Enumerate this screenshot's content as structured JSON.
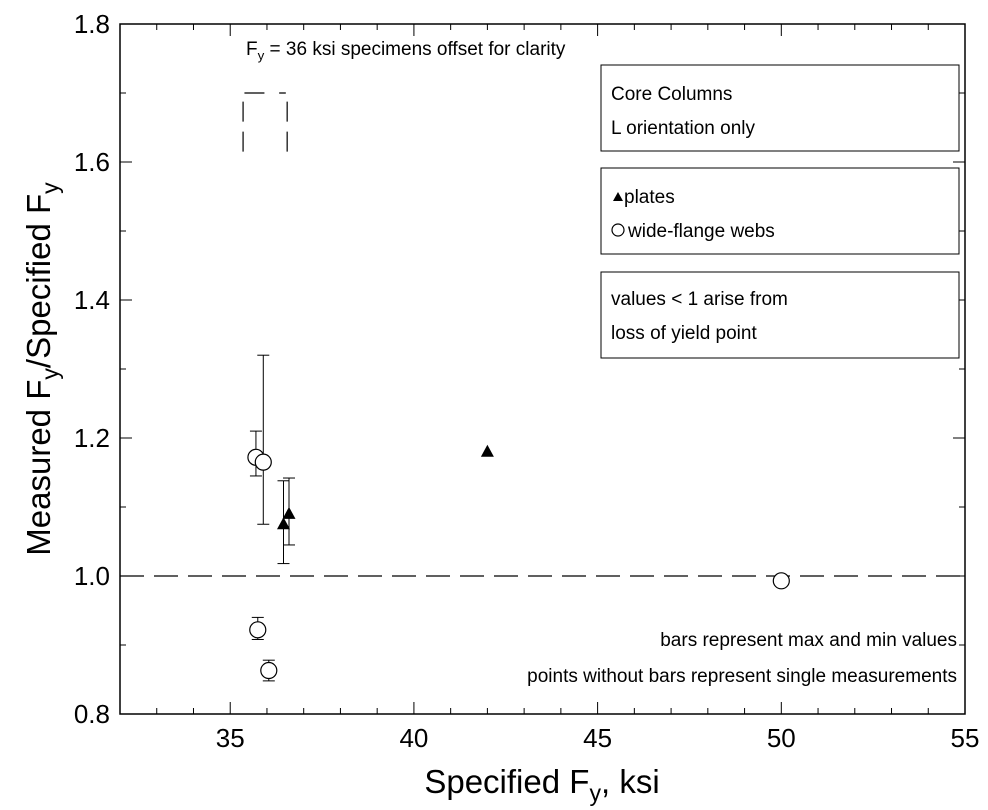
{
  "chart_data": {
    "type": "scatter",
    "title": "",
    "xlabel": {
      "main": "Specified F",
      "sub": "y",
      "tail": ", ksi"
    },
    "ylabel": {
      "a": "Measured F",
      "a_sub": "y",
      "b": "/Specified F",
      "b_sub": "y"
    },
    "xlim": [
      32,
      55
    ],
    "ylim": [
      0.8,
      1.8
    ],
    "x_ticks": [
      35,
      40,
      45,
      50,
      55
    ],
    "y_ticks": [
      0.8,
      1.0,
      1.2,
      1.4,
      1.6,
      1.8
    ],
    "x_tick_labels": [
      "35",
      "40",
      "45",
      "50",
      "55"
    ],
    "y_tick_labels": [
      "0.8",
      "1.0",
      "1.2",
      "1.4",
      "1.6",
      "1.8"
    ],
    "reference_line": {
      "y": 1.0,
      "style": "dashed"
    },
    "series": [
      {
        "name": "plates",
        "marker": "triangle",
        "points": [
          {
            "x": 36.45,
            "y": 1.075,
            "ymin": 1.018,
            "ymax": 1.138
          },
          {
            "x": 36.6,
            "y": 1.09,
            "ymin": 1.045,
            "ymax": 1.142
          },
          {
            "x": 42.0,
            "y": 1.18
          }
        ]
      },
      {
        "name": "wide-flange webs",
        "marker": "circle",
        "points": [
          {
            "x": 35.7,
            "y": 1.172,
            "ymin": 1.145,
            "ymax": 1.21
          },
          {
            "x": 35.9,
            "y": 1.165,
            "ymin": 1.075,
            "ymax": 1.32
          },
          {
            "x": 35.75,
            "y": 0.922,
            "ymin": 0.908,
            "ymax": 0.94
          },
          {
            "x": 36.05,
            "y": 0.863,
            "ymin": 0.848,
            "ymax": 0.878
          },
          {
            "x": 50.0,
            "y": 0.993
          }
        ]
      }
    ],
    "offset_note": {
      "pre": "F",
      "sub": "y",
      "post": " = 36 ksi specimens offset for clarity"
    },
    "boxes": [
      {
        "id": "core",
        "lines": [
          "Core Columns",
          "L orientation only"
        ]
      },
      {
        "id": "legend",
        "lines": [
          "plates",
          "wide-flange webs"
        ]
      },
      {
        "id": "values",
        "lines": [
          "values < 1 arise from",
          "loss of yield point"
        ]
      }
    ],
    "bottom_notes": [
      "bars represent max and min values",
      "points without bars represent single measurements"
    ],
    "grid": false,
    "legend_position": "top-right"
  }
}
